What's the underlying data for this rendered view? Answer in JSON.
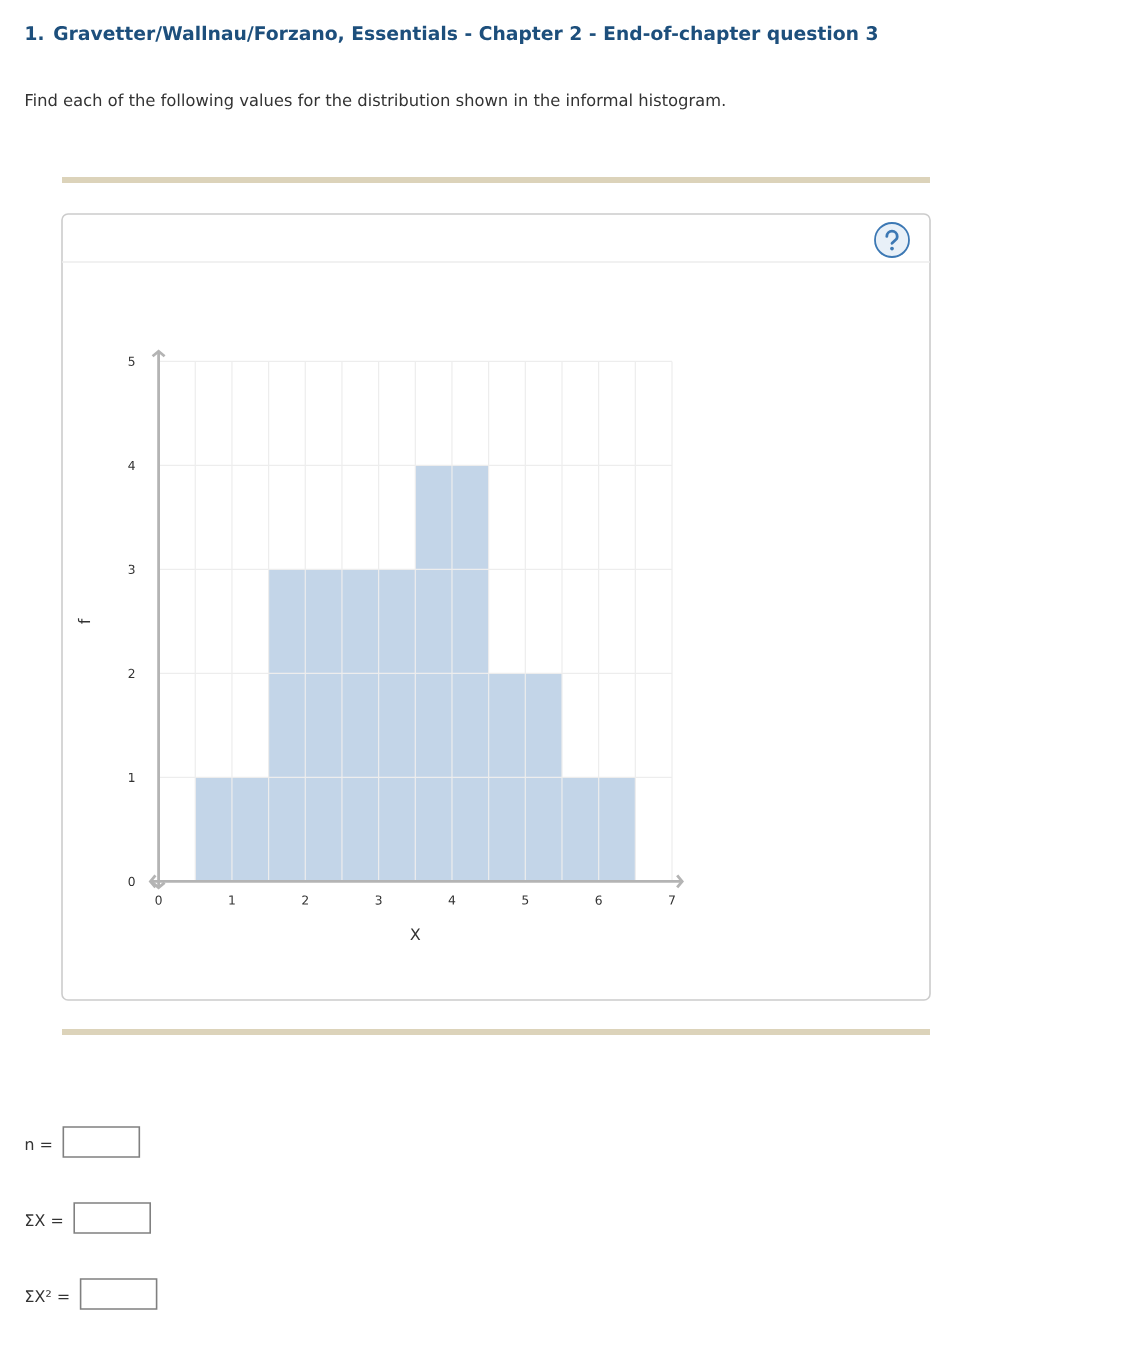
{
  "chart_data": {
    "type": "histogram",
    "title": "1. Gravetter/Wallnau/Forzano, Essentials - Chapter 2 - End-of-chapter question 3",
    "subtitle": "Find each of the following values for the distribution shown in the informal histogram.",
    "xlabel": "X",
    "ylabel": "f",
    "bins": [
      0.5,
      1.5,
      2.5,
      3.5,
      4.5,
      5.5,
      6.5
    ],
    "values": [
      1,
      3,
      3,
      4,
      2,
      1
    ],
    "color": "#c3d5e8",
    "xlim": [
      0,
      7
    ],
    "ylim": [
      0,
      5
    ],
    "xticks": [
      0,
      {
        "value": 0.5,
        "label": null
      },
      1,
      {
        "value": 1.5,
        "label": null
      },
      2,
      {
        "value": 2.5,
        "label": null
      },
      3,
      {
        "value": 3.5,
        "label": null
      },
      4,
      {
        "value": 4.5,
        "label": null
      },
      5,
      {
        "value": 5.5,
        "label": null
      },
      6,
      {
        "value": 6.5,
        "label": null
      },
      7
    ],
    "yticks": [
      0,
      1,
      2,
      3,
      4,
      5
    ],
    "grid": true,
    "annotations": [
      "n =",
      "ΣX =",
      "ΣX² ="
    ]
  }
}
